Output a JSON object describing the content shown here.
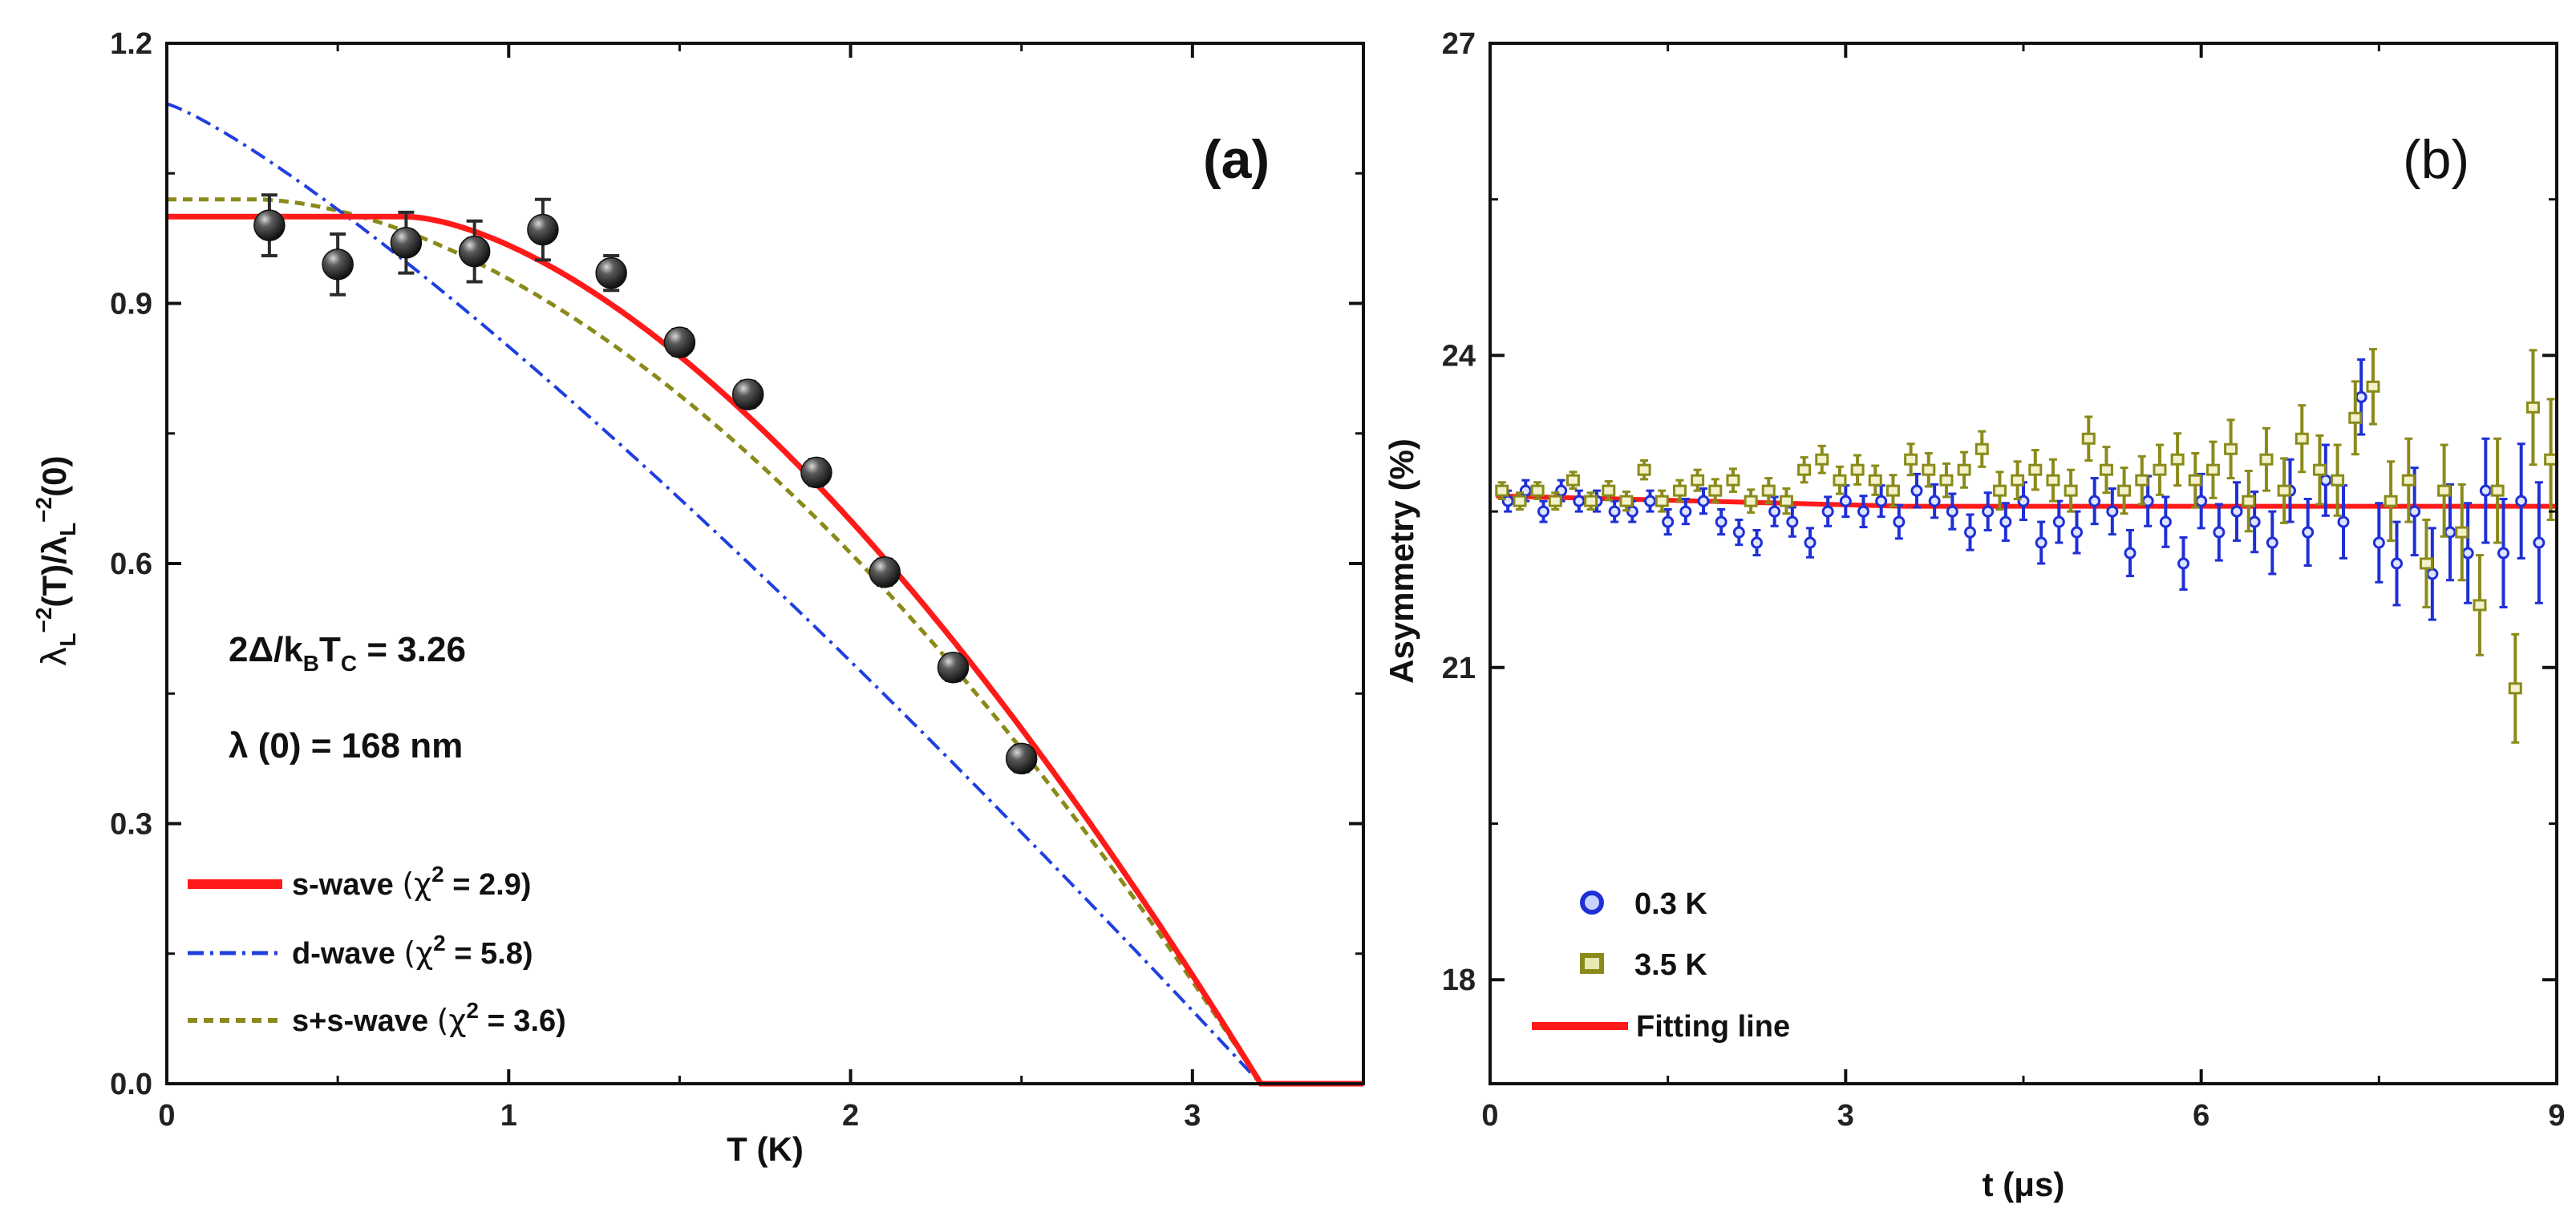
{
  "chart_data": [
    {
      "panel": "(a)",
      "type": "scatter",
      "xlabel": "T (K)",
      "ylabel_parts": [
        "λ",
        "L",
        "−2",
        "(T)/λ",
        "L",
        "−2",
        "(0)"
      ],
      "xlim": [
        0,
        3.5
      ],
      "ylim": [
        0,
        1.2
      ],
      "xticks": [
        0,
        1,
        2,
        3
      ],
      "xtick_labels": [
        "0",
        "1",
        "2",
        "3"
      ],
      "yticks": [
        0,
        0.3,
        0.6,
        0.9,
        1.2
      ],
      "ytick_labels": [
        "0.0",
        "0.3",
        "0.6",
        "0.9",
        "1.2"
      ],
      "annotation_gap": {
        "lhs": "2Δ/k",
        "sub_b": "B",
        "t": "T",
        "sub_c": "C",
        "rhs": " = 3.26"
      },
      "annotation_lambda": "λ (0) = 168 nm",
      "data_points": {
        "x": [
          0.3,
          0.5,
          0.7,
          0.9,
          1.1,
          1.3,
          1.5,
          1.7,
          1.9,
          2.1,
          2.3,
          2.5
        ],
        "y": [
          0.99,
          0.945,
          0.97,
          0.96,
          0.985,
          0.935,
          0.855,
          0.795,
          0.705,
          0.59,
          0.48,
          0.375
        ],
        "err": [
          0.035,
          0.035,
          0.035,
          0.035,
          0.035,
          0.02,
          0.015,
          0.015,
          0.015,
          0.015,
          0.015,
          0.015
        ],
        "color": "#2b2b2b"
      },
      "Tc": 3.2,
      "series": [
        {
          "name": "s-wave",
          "chi2_label": "(χ",
          "chi2_exp": "2",
          "chi2_value": " = 2.9)",
          "model": "s",
          "amplitude": 1.0,
          "color": "#ff1a1a"
        },
        {
          "name": "d-wave",
          "chi2_label": "(χ",
          "chi2_exp": "2",
          "chi2_value": " = 5.8)",
          "model": "d",
          "amplitude": 1.13,
          "color": "#1f3fe0"
        },
        {
          "name": "s+s-wave",
          "chi2_label": "(χ",
          "chi2_exp": "2",
          "chi2_value": " = 3.6)",
          "model": "ss",
          "amplitude": 1.02,
          "color": "#8a8a1a"
        }
      ]
    },
    {
      "panel": "(b)",
      "type": "scatter",
      "xlabel": "t (μs)",
      "ylabel": "Asymmetry (%)",
      "xlim": [
        0,
        9
      ],
      "ylim": [
        17,
        27
      ],
      "xticks": [
        0,
        3,
        6,
        9
      ],
      "xtick_labels": [
        "0",
        "3",
        "6",
        "9"
      ],
      "yticks": [
        18,
        21,
        24,
        27
      ],
      "ytick_labels": [
        "18",
        "21",
        "24",
        "27"
      ],
      "fit_value": 22.55,
      "series": [
        {
          "name": "0.3 K",
          "marker": "circle",
          "color": "#1f2fd6",
          "x": [
            0.15,
            0.3,
            0.45,
            0.6,
            0.75,
            0.9,
            1.05,
            1.2,
            1.35,
            1.5,
            1.65,
            1.8,
            1.95,
            2.1,
            2.25,
            2.4,
            2.55,
            2.7,
            2.85,
            3.0,
            3.15,
            3.3,
            3.45,
            3.6,
            3.75,
            3.9,
            4.05,
            4.2,
            4.35,
            4.5,
            4.65,
            4.8,
            4.95,
            5.1,
            5.25,
            5.4,
            5.55,
            5.7,
            5.85,
            6.0,
            6.15,
            6.3,
            6.45,
            6.6,
            6.75,
            6.9,
            7.05,
            7.2,
            7.35,
            7.5,
            7.65,
            7.8,
            7.95,
            8.1,
            8.25,
            8.4,
            8.55,
            8.7,
            8.85
          ],
          "y": [
            22.6,
            22.7,
            22.5,
            22.7,
            22.6,
            22.6,
            22.5,
            22.5,
            22.6,
            22.4,
            22.5,
            22.6,
            22.4,
            22.3,
            22.2,
            22.5,
            22.4,
            22.2,
            22.5,
            22.6,
            22.5,
            22.6,
            22.4,
            22.7,
            22.6,
            22.5,
            22.3,
            22.5,
            22.4,
            22.6,
            22.2,
            22.4,
            22.3,
            22.6,
            22.5,
            22.1,
            22.6,
            22.4,
            22.0,
            22.6,
            22.3,
            22.5,
            22.4,
            22.2,
            22.7,
            22.3,
            22.8,
            22.4,
            23.6,
            22.2,
            22.0,
            22.5,
            21.9,
            22.3,
            22.1,
            22.7,
            22.1,
            22.6,
            22.2
          ],
          "err": [
            0.1,
            0.1,
            0.1,
            0.1,
            0.1,
            0.1,
            0.1,
            0.1,
            0.1,
            0.12,
            0.12,
            0.12,
            0.12,
            0.12,
            0.12,
            0.14,
            0.14,
            0.14,
            0.14,
            0.15,
            0.15,
            0.15,
            0.16,
            0.16,
            0.16,
            0.17,
            0.17,
            0.18,
            0.18,
            0.18,
            0.2,
            0.2,
            0.2,
            0.22,
            0.22,
            0.22,
            0.24,
            0.24,
            0.25,
            0.26,
            0.27,
            0.28,
            0.29,
            0.3,
            0.3,
            0.32,
            0.34,
            0.35,
            0.36,
            0.38,
            0.4,
            0.42,
            0.44,
            0.46,
            0.48,
            0.5,
            0.52,
            0.55,
            0.58
          ]
        },
        {
          "name": "3.5 K",
          "marker": "square",
          "color": "#8a8a1a",
          "x": [
            0.1,
            0.25,
            0.4,
            0.55,
            0.7,
            0.85,
            1.0,
            1.15,
            1.3,
            1.45,
            1.6,
            1.75,
            1.9,
            2.05,
            2.2,
            2.35,
            2.5,
            2.65,
            2.8,
            2.95,
            3.1,
            3.25,
            3.4,
            3.55,
            3.7,
            3.85,
            4.0,
            4.15,
            4.3,
            4.45,
            4.6,
            4.75,
            4.9,
            5.05,
            5.2,
            5.35,
            5.5,
            5.65,
            5.8,
            5.95,
            6.1,
            6.25,
            6.4,
            6.55,
            6.7,
            6.85,
            7.0,
            7.15,
            7.3,
            7.45,
            7.6,
            7.75,
            7.9,
            8.05,
            8.2,
            8.35,
            8.5,
            8.65,
            8.8,
            8.95
          ],
          "y": [
            22.7,
            22.6,
            22.7,
            22.6,
            22.8,
            22.6,
            22.7,
            22.6,
            22.9,
            22.6,
            22.7,
            22.8,
            22.7,
            22.8,
            22.6,
            22.7,
            22.6,
            22.9,
            23.0,
            22.8,
            22.9,
            22.8,
            22.7,
            23.0,
            22.9,
            22.8,
            22.9,
            23.1,
            22.7,
            22.8,
            22.9,
            22.8,
            22.7,
            23.2,
            22.9,
            22.7,
            22.8,
            22.9,
            23.0,
            22.8,
            22.9,
            23.1,
            22.6,
            23.0,
            22.7,
            23.2,
            22.9,
            22.8,
            23.4,
            23.7,
            22.6,
            22.8,
            22.0,
            22.7,
            22.3,
            21.6,
            22.7,
            20.8,
            23.5,
            23.0
          ],
          "err": [
            0.08,
            0.08,
            0.08,
            0.08,
            0.08,
            0.08,
            0.09,
            0.09,
            0.09,
            0.1,
            0.1,
            0.1,
            0.11,
            0.11,
            0.11,
            0.12,
            0.12,
            0.12,
            0.13,
            0.13,
            0.14,
            0.14,
            0.15,
            0.15,
            0.16,
            0.16,
            0.17,
            0.17,
            0.18,
            0.18,
            0.19,
            0.2,
            0.2,
            0.21,
            0.22,
            0.22,
            0.23,
            0.24,
            0.25,
            0.26,
            0.27,
            0.28,
            0.29,
            0.3,
            0.31,
            0.32,
            0.33,
            0.34,
            0.35,
            0.36,
            0.38,
            0.4,
            0.42,
            0.44,
            0.46,
            0.48,
            0.5,
            0.52,
            0.55,
            0.58
          ]
        }
      ],
      "fit_series": {
        "name": "Fitting line",
        "color": "#ff1a1a"
      }
    }
  ]
}
